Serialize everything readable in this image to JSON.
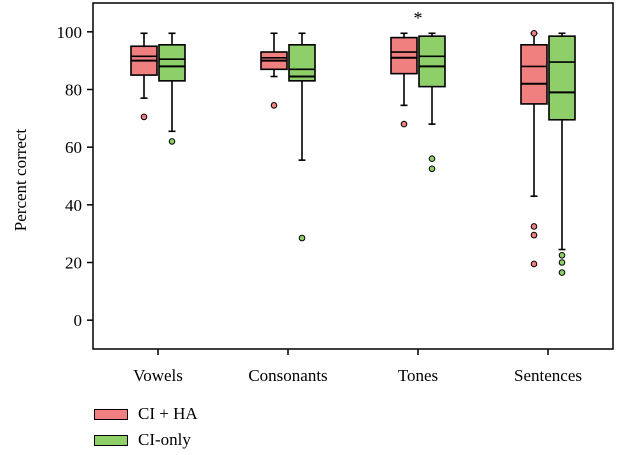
{
  "colors": {
    "ci_ha": "#f08080",
    "ci_only": "#8ecf6a",
    "outline": "#000000"
  },
  "legend": {
    "position": "bottom-left"
  },
  "chart_data": {
    "type": "box",
    "ylabel": "Percent correct",
    "xlabel": "",
    "ylim": [
      -10,
      110
    ],
    "yticks": [
      0,
      20,
      40,
      60,
      80,
      100
    ],
    "categories": [
      "Vowels",
      "Consonants",
      "Tones",
      "Sentences"
    ],
    "grid": false,
    "annotations": [
      {
        "category": "Tones",
        "text": "*"
      }
    ],
    "series": [
      {
        "name": "CI + HA",
        "color": "#f08080",
        "boxes": [
          {
            "category": "Vowels",
            "min": 77,
            "q1": 85,
            "median": 90,
            "q3": 95,
            "max": 99.5,
            "median_line_2": 91.5,
            "outliers": [
              70.5
            ]
          },
          {
            "category": "Consonants",
            "min": 84.5,
            "q1": 87,
            "median": 90,
            "q3": 93,
            "max": 99.5,
            "median_line_2": 91,
            "outliers": [
              74.5
            ]
          },
          {
            "category": "Tones",
            "min": 74.5,
            "q1": 85.5,
            "median": 91,
            "q3": 98,
            "max": 99.5,
            "median_line_2": 93,
            "outliers": [
              68
            ]
          },
          {
            "category": "Sentences",
            "min": 43,
            "q1": 75,
            "median": 82,
            "q3": 95.5,
            "max": 99.5,
            "median_line_2": 88,
            "outliers": [
              99.5,
              32.5,
              29.5,
              19.5
            ]
          }
        ]
      },
      {
        "name": "CI-only",
        "color": "#8ecf6a",
        "boxes": [
          {
            "category": "Vowels",
            "min": 65.5,
            "q1": 83,
            "median": 88,
            "q3": 95.5,
            "max": 99.5,
            "median_line_2": 90.5,
            "outliers": [
              62
            ]
          },
          {
            "category": "Consonants",
            "min": 55.5,
            "q1": 83,
            "median": 84.5,
            "q3": 95.5,
            "max": 99.5,
            "median_line_2": 87,
            "outliers": [
              28.5
            ]
          },
          {
            "category": "Tones",
            "min": 68,
            "q1": 81,
            "median": 88,
            "q3": 98.5,
            "max": 99.5,
            "median_line_2": 91.5,
            "outliers": [
              56,
              52.5
            ]
          },
          {
            "category": "Sentences",
            "min": 24.5,
            "q1": 69.5,
            "median": 79,
            "q3": 98.5,
            "max": 99.5,
            "median_line_2": 89.5,
            "outliers": [
              22.5,
              20,
              16.5
            ]
          }
        ]
      }
    ]
  }
}
